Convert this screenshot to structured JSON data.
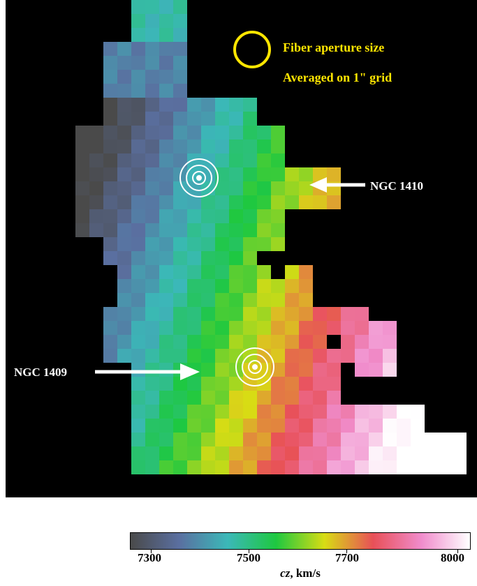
{
  "legend": {
    "aperture_text": "Fiber aperture size",
    "grid_text": "Averaged on 1\" grid",
    "circle_color": "#ffe600"
  },
  "labels": {
    "ngc1410": "NGC 1410",
    "ngc1409": "NGC 1409"
  },
  "colorbar": {
    "ticks": [
      "7300",
      "7500",
      "7700",
      "8000"
    ],
    "unit_prefix": "cz",
    "unit_suffix": ", km/s",
    "stops": [
      "#4a4a4a",
      "#5a6fa0",
      "#3bb8b8",
      "#1ec840",
      "#d8dc14",
      "#e85058",
      "#f08ccc",
      "#ffffff"
    ]
  },
  "velocity_field": {
    "description_units": "km/s",
    "range": [
      7300,
      8000
    ]
  },
  "icons": {
    "nucleus_marker": "concentric-circles-icon",
    "arrow": "arrow-icon"
  }
}
